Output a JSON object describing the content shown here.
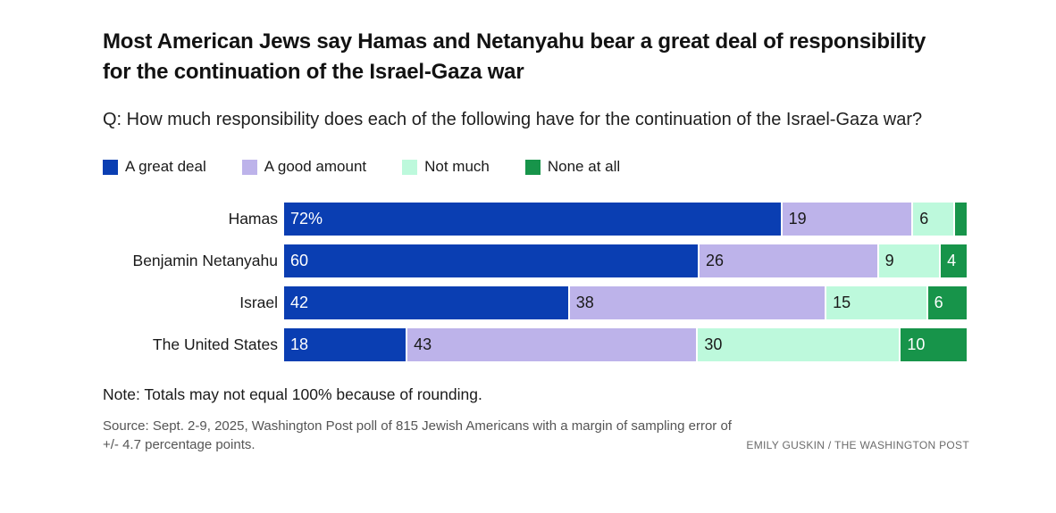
{
  "header": {
    "title": "Most American Jews say Hamas and Netanyahu bear a great deal of responsibility for the continuation of the Israel-Gaza war",
    "question": "Q: How much responsibility does each of the following have for the continuation of the Israel-Gaza war?"
  },
  "legend": [
    {
      "label": "A great deal",
      "color": "#0a3eb2"
    },
    {
      "label": "A good amount",
      "color": "#bdb3ea"
    },
    {
      "label": "Not much",
      "color": "#bdf9dc"
    },
    {
      "label": "None at all",
      "color": "#17944a"
    }
  ],
  "chart_data": {
    "type": "bar",
    "orientation": "horizontal",
    "stacked": true,
    "categories": [
      "Hamas",
      "Benjamin Netanyahu",
      "Israel",
      "The United States"
    ],
    "series": [
      {
        "name": "A great deal",
        "color": "#0a3eb2",
        "text_color": "#ffffff",
        "values": [
          72,
          60,
          42,
          18
        ],
        "labels": [
          "72%",
          "60",
          "42",
          "18"
        ]
      },
      {
        "name": "A good amount",
        "color": "#bdb3ea",
        "text_color": "#1a1a1a",
        "values": [
          19,
          26,
          38,
          43
        ],
        "labels": [
          "19",
          "26",
          "38",
          "43"
        ]
      },
      {
        "name": "Not much",
        "color": "#bdf9dc",
        "text_color": "#1a1a1a",
        "values": [
          6,
          9,
          15,
          30
        ],
        "labels": [
          "6",
          "9",
          "15",
          "30"
        ]
      },
      {
        "name": "None at all",
        "color": "#17944a",
        "text_color": "#ffffff",
        "values": [
          2,
          4,
          6,
          10
        ],
        "labels": [
          "",
          "4",
          "6",
          "10"
        ]
      }
    ]
  },
  "footer": {
    "note": "Note: Totals may not equal 100% because of rounding.",
    "source": "Source: Sept. 2-9, 2025, Washington Post poll of 815 Jewish Americans with a margin of sampling error of +/- 4.7 percentage points.",
    "credit": "EMILY GUSKIN / THE WASHINGTON POST"
  }
}
